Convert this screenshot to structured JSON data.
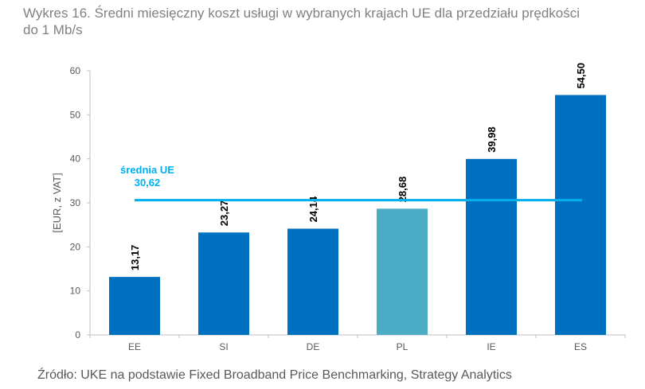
{
  "title_line1": "Wykres 16. Średni miesięczny koszt usługi w wybranych krajach UE dla przedziału prędkości",
  "title_line2": "do 1 Mb/s",
  "source": "Źródło: UKE na podstawie Fixed Broadband Price Benchmarking, Strategy Analytics",
  "chart_data": {
    "type": "bar",
    "categories": [
      "EE",
      "SI",
      "DE",
      "PL",
      "IE",
      "ES"
    ],
    "values": [
      13.17,
      23.27,
      24.14,
      28.68,
      39.98,
      54.5
    ],
    "data_labels": [
      "13,17",
      "23,27",
      "24,14",
      "28,68",
      "39,98",
      "54,50"
    ],
    "ylabel": "[EUR, z VAT]",
    "xlabel": "",
    "ylim": [
      0,
      60
    ],
    "yticks": [
      0,
      10,
      20,
      30,
      40,
      50,
      60
    ],
    "grid": false,
    "highlight_category": "PL",
    "reference_line": {
      "label": "średnia UE",
      "value": 30.62,
      "value_label": "30,62"
    },
    "colors": {
      "bar": "#0070C0",
      "highlight": "#4BACC6",
      "reference_line": "#00B0F0",
      "axis_text": "#595959"
    }
  }
}
